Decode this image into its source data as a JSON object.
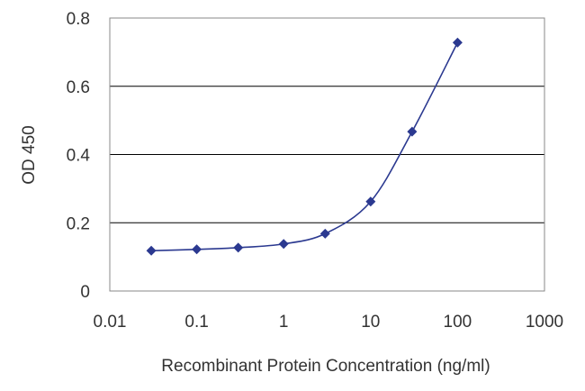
{
  "chart_data": {
    "type": "scatter",
    "title": "",
    "xlabel": "Recombinant Protein Concentration (ng/ml)",
    "ylabel": "OD 450",
    "x_scale": "log",
    "xlim": [
      0.01,
      1000
    ],
    "ylim": [
      0,
      0.8
    ],
    "x_ticks": [
      "0.01",
      "0.1",
      "1",
      "10",
      "100",
      "1000"
    ],
    "y_ticks": [
      "0",
      "0.2",
      "0.4",
      "0.6",
      "0.8"
    ],
    "grid": "horizontal",
    "legend": "none",
    "fit_curve": true,
    "colors": {
      "series": "#2b3990",
      "grid": "#000000",
      "frame": "#888888"
    },
    "series": [
      {
        "x": [
          0.03,
          0.1,
          0.3,
          1,
          3,
          10,
          30,
          100
        ],
        "y": [
          0.118,
          0.122,
          0.127,
          0.138,
          0.168,
          0.262,
          0.467,
          0.728
        ]
      }
    ]
  }
}
